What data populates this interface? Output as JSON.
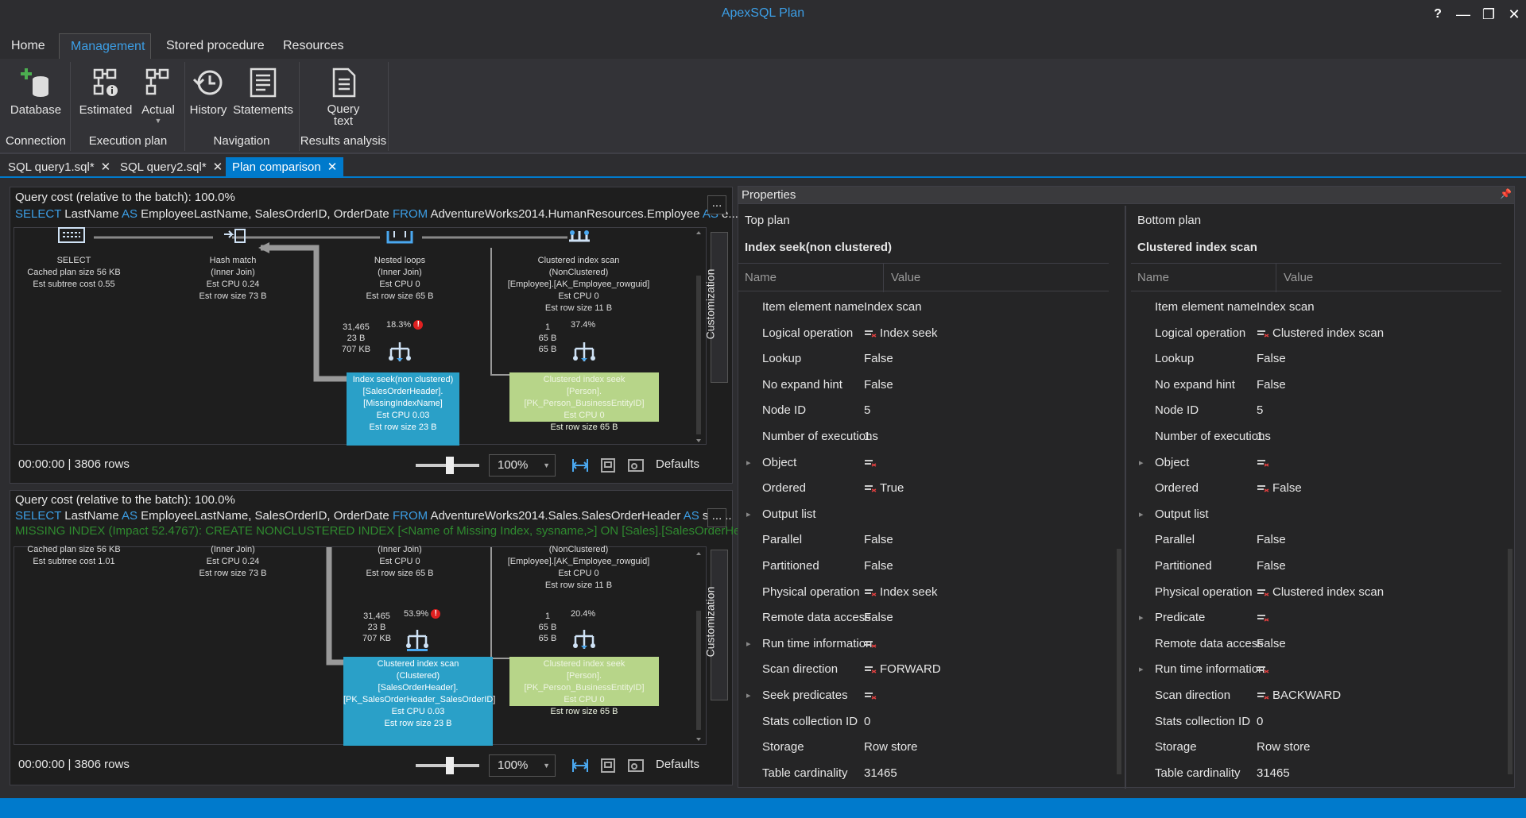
{
  "app": {
    "title": "ApexSQL Plan",
    "help": "?",
    "minimize": "—",
    "restore": "❐",
    "close": "✕"
  },
  "menu": [
    "Home",
    "Management",
    "Stored procedure",
    "Resources"
  ],
  "ribbon": {
    "buttons": {
      "database": "Database",
      "estimated": "Estimated",
      "actual": "Actual",
      "history": "History",
      "statements": "Statements",
      "query_text_1": "Query",
      "query_text_2": "text"
    },
    "groups": {
      "connection": "Connection",
      "execution_plan": "Execution plan",
      "navigation": "Navigation",
      "results_analysis": "Results analysis"
    }
  },
  "tabs": [
    {
      "label": "SQL query1.sql*"
    },
    {
      "label": "SQL query2.sql*"
    },
    {
      "label": "Plan comparison"
    }
  ],
  "top_plan": {
    "cost": "Query cost (relative to the batch):  100.0%",
    "sql": {
      "k1": "SELECT",
      "t1": " LastName ",
      "k2": "AS",
      "t2": " EmployeeLastName, SalesOrderID, OrderDate ",
      "k3": "FROM",
      "t3": " AdventureWorks2014.HumanResources.Employee ",
      "k4": "AS",
      "t4": " e..."
    },
    "more": "...",
    "nodes": {
      "select": {
        "l1": "SELECT",
        "l2": "Cached plan size  56 KB",
        "l3": "Est subtree cost  0.55"
      },
      "hash": {
        "l1": "Hash match",
        "l2": "(Inner Join)",
        "l3": "Est CPU  0.24",
        "l4": "Est row size  73 B"
      },
      "nested": {
        "l1": "Nested loops",
        "l2": "(Inner Join)",
        "l3": "Est CPU  0",
        "l4": "Est row size  65 B"
      },
      "clus": {
        "l1": "Clustered index scan",
        "l2": "(NonClustered)",
        "l3": "[Employee].[AK_Employee_rowguid]",
        "l4": "Est CPU  0",
        "l5": "Est row size  11 B"
      }
    },
    "stats_left": {
      "a": "31,465",
      "b": "23 B",
      "c": "707 KB",
      "pct": "18.3%"
    },
    "stats_right": {
      "a": "1",
      "b": "65 B",
      "c": "65 B",
      "pct": "37.4%"
    },
    "box_blue": {
      "l1": "Index seek(non clustered)",
      "l2": "[SalesOrderHeader].",
      "l3": "[MissingIndexName]",
      "l4": "Est CPU  0.03",
      "l5": "Est row size  23 B"
    },
    "box_green": {
      "l1": "Clustered index seek",
      "l2": "[Person].[PK_Person_BusinessEntityID]",
      "l3": "Est CPU  0",
      "l4": "Est row size  65 B"
    },
    "time": "00:00:00 | 3806 rows",
    "zoom": "100%",
    "defaults": "Defaults",
    "customization": "Customization"
  },
  "bottom_plan": {
    "cost": "Query cost (relative to the batch):  100.0%",
    "sql": {
      "k1": "SELECT",
      "t1": " LastName ",
      "k2": "AS",
      "t2": " EmployeeLastName, SalesOrderID, OrderDate ",
      "k3": "FROM",
      "t3": " AdventureWorks2014.Sales.SalesOrderHeader ",
      "k4": "AS",
      "t4": " soh..."
    },
    "missing": "MISSING INDEX (Impact 52.4767): CREATE NONCLUSTERED INDEX [<Name of Missing Index, sysname,>] ON [Sales].[SalesOrderHe",
    "more": "...",
    "nodes": {
      "select": {
        "l2": "Cached plan size  56 KB",
        "l3": "Est subtree cost  1.01"
      },
      "hash": {
        "l2": "(Inner Join)",
        "l3": "Est CPU  0.24",
        "l4": "Est row size  73 B"
      },
      "nested": {
        "l2": "(Inner Join)",
        "l3": "Est CPU  0",
        "l4": "Est row size  65 B"
      },
      "clus": {
        "l2": "(NonClustered)",
        "l3": "[Employee].[AK_Employee_rowguid]",
        "l4": "Est CPU  0",
        "l5": "Est row size  11 B"
      }
    },
    "stats_left": {
      "a": "31,465",
      "b": "23 B",
      "c": "707 KB",
      "pct": "53.9%"
    },
    "stats_right": {
      "a": "1",
      "b": "65 B",
      "c": "65 B",
      "pct": "20.4%"
    },
    "box_blue": {
      "l1": "Clustered index scan",
      "l2": "(Clustered)",
      "l3": "[SalesOrderHeader].",
      "l4": "[PK_SalesOrderHeader_SalesOrderID]",
      "l5": "Est CPU  0.03",
      "l6": "Est row size  23 B"
    },
    "box_green": {
      "l1": "Clustered index seek",
      "l2": "[Person].[PK_Person_BusinessEntityID]",
      "l3": "Est CPU  0",
      "l4": "Est row size  65 B"
    },
    "time": "00:00:00 | 3806 rows",
    "zoom": "100%",
    "defaults": "Defaults",
    "customization": "Customization"
  },
  "properties": {
    "title": "Properties",
    "top": {
      "label": "Top plan",
      "op": "Index seek(non clustered)",
      "col_name": "Name",
      "col_value": "Value",
      "rows": [
        {
          "n": "Item element name",
          "v": "Index scan"
        },
        {
          "n": "Logical operation",
          "v": "Index seek",
          "icon": true
        },
        {
          "n": "Lookup",
          "v": "False"
        },
        {
          "n": "No expand hint",
          "v": "False"
        },
        {
          "n": "Node ID",
          "v": "5"
        },
        {
          "n": "Number of executions",
          "v": "1"
        },
        {
          "n": "Object",
          "v": "",
          "icon": true,
          "exp": true
        },
        {
          "n": "Ordered",
          "v": "True",
          "icon": true
        },
        {
          "n": "Output list",
          "v": "",
          "exp": true
        },
        {
          "n": "Parallel",
          "v": "False"
        },
        {
          "n": "Partitioned",
          "v": "False"
        },
        {
          "n": "Physical operation",
          "v": "Index seek",
          "icon": true
        },
        {
          "n": "Remote data access",
          "v": "False"
        },
        {
          "n": "Run time information",
          "v": "",
          "icon": true,
          "exp": true
        },
        {
          "n": "Scan direction",
          "v": "FORWARD",
          "icon": true
        },
        {
          "n": "Seek predicates",
          "v": "",
          "icon": true,
          "exp": true
        },
        {
          "n": "Stats collection ID",
          "v": "0"
        },
        {
          "n": "Storage",
          "v": "Row store"
        },
        {
          "n": "Table cardinality",
          "v": "31465"
        }
      ]
    },
    "bottom": {
      "label": "Bottom plan",
      "op": "Clustered index scan",
      "col_name": "Name",
      "col_value": "Value",
      "rows": [
        {
          "n": "Item element name",
          "v": "Index scan"
        },
        {
          "n": "Logical operation",
          "v": "Clustered index scan",
          "icon": true
        },
        {
          "n": "Lookup",
          "v": "False"
        },
        {
          "n": "No expand hint",
          "v": "False"
        },
        {
          "n": "Node ID",
          "v": "5"
        },
        {
          "n": "Number of executions",
          "v": "1"
        },
        {
          "n": "Object",
          "v": "",
          "icon": true,
          "exp": true
        },
        {
          "n": "Ordered",
          "v": "False",
          "icon": true
        },
        {
          "n": "Output list",
          "v": "",
          "exp": true
        },
        {
          "n": "Parallel",
          "v": "False"
        },
        {
          "n": "Partitioned",
          "v": "False"
        },
        {
          "n": "Physical operation",
          "v": "Clustered index scan",
          "icon": true
        },
        {
          "n": "Predicate",
          "v": "",
          "icon": true,
          "exp": true
        },
        {
          "n": "Remote data access",
          "v": "False"
        },
        {
          "n": "Run time information",
          "v": "",
          "icon": true,
          "exp": true
        },
        {
          "n": "Scan direction",
          "v": "BACKWARD",
          "icon": true
        },
        {
          "n": "Stats collection ID",
          "v": "0"
        },
        {
          "n": "Storage",
          "v": "Row store"
        },
        {
          "n": "Table cardinality",
          "v": "31465"
        }
      ]
    }
  },
  "colors": {
    "accent": "#007acc",
    "title_blue": "#3c9ee5",
    "box_blue": "#2aa0c8",
    "box_green": "#b7d589",
    "warning": "#e02020",
    "missing_index": "#2f8a2f"
  }
}
